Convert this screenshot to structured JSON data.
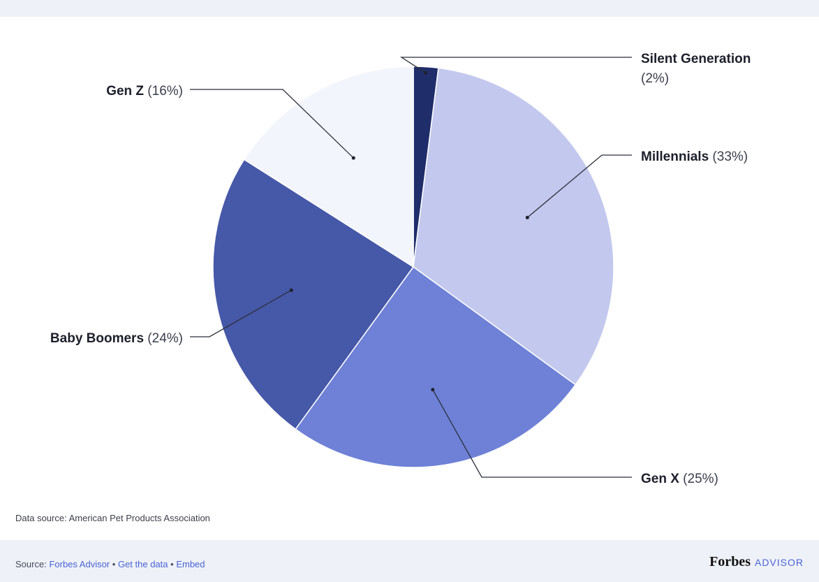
{
  "chart_data": {
    "type": "pie",
    "slices": [
      {
        "name": "Silent Generation",
        "value": 2,
        "label": "(2%)",
        "color": "#1f2d6b"
      },
      {
        "name": "Millennials",
        "value": 33,
        "label": "(33%)",
        "color": "#c3c8ee"
      },
      {
        "name": "Gen X",
        "value": 25,
        "label": "(25%)",
        "color": "#6e81d7"
      },
      {
        "name": "Baby Boomers",
        "value": 24,
        "label": "(24%)",
        "color": "#4658a8"
      },
      {
        "name": "Gen Z",
        "value": 16,
        "label": "(16%)",
        "color": "#f3f5fc"
      }
    ]
  },
  "data_source": "Data source: American Pet Products Association",
  "footer": {
    "source_prefix": "Source:",
    "source_link": "Forbes Advisor",
    "sep1": "•",
    "get_data": "Get the data",
    "sep2": "•",
    "embed": "Embed",
    "brand_name": "Forbes",
    "brand_suffix": "ADVISOR"
  }
}
